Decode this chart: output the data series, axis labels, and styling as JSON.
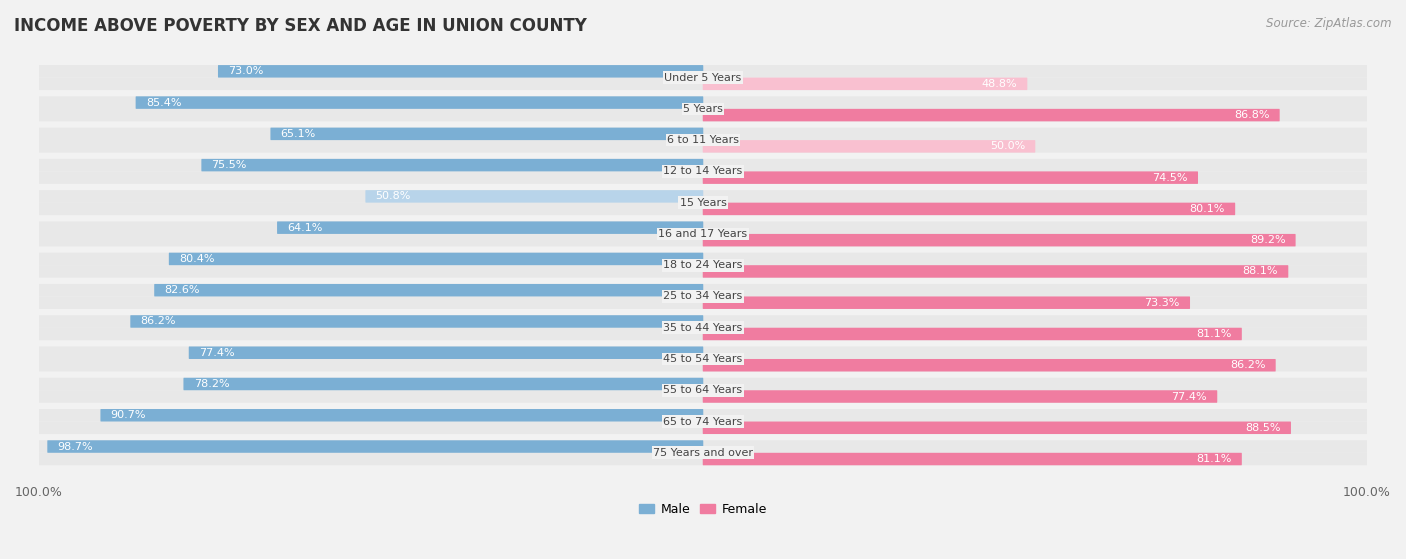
{
  "title": "INCOME ABOVE POVERTY BY SEX AND AGE IN UNION COUNTY",
  "source": "Source: ZipAtlas.com",
  "categories": [
    "Under 5 Years",
    "5 Years",
    "6 to 11 Years",
    "12 to 14 Years",
    "15 Years",
    "16 and 17 Years",
    "18 to 24 Years",
    "25 to 34 Years",
    "35 to 44 Years",
    "45 to 54 Years",
    "55 to 64 Years",
    "65 to 74 Years",
    "75 Years and over"
  ],
  "male_values": [
    73.0,
    85.4,
    65.1,
    75.5,
    50.8,
    64.1,
    80.4,
    82.6,
    86.2,
    77.4,
    78.2,
    90.7,
    98.7
  ],
  "female_values": [
    48.8,
    86.8,
    50.0,
    74.5,
    80.1,
    89.2,
    88.1,
    73.3,
    81.1,
    86.2,
    77.4,
    88.5,
    81.1
  ],
  "male_color": "#7bafd4",
  "male_color_light": "#b8d4ea",
  "female_color": "#f07ca0",
  "female_color_light": "#f9c0d0",
  "male_label": "Male",
  "female_label": "Female",
  "background_color": "#f2f2f2",
  "row_bg_color": "#e8e8e8",
  "xlim": 100,
  "title_fontsize": 12,
  "label_fontsize": 8,
  "value_fontsize": 8,
  "source_fontsize": 8.5
}
